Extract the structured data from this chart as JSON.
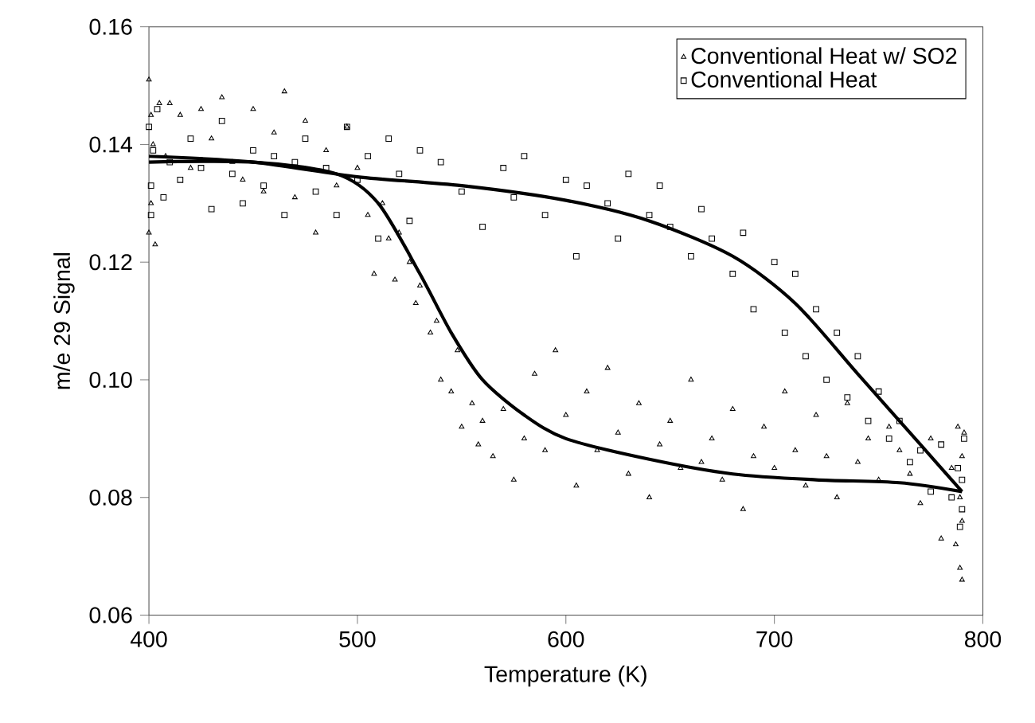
{
  "chart_data": {
    "type": "scatter",
    "xlabel": "Temperature (K)",
    "ylabel": "m/e 29 Signal",
    "xlim": [
      400,
      800
    ],
    "ylim": [
      0.06,
      0.16
    ],
    "xticks": [
      400,
      500,
      600,
      700,
      800
    ],
    "yticks": [
      0.06,
      0.08,
      {
        "value": 0.1,
        "label": "0.10"
      },
      0.12,
      0.14,
      0.16
    ],
    "grid": false,
    "legend": "top right",
    "series": [
      {
        "name": "Conventional Heat w/ SO2",
        "color": "#000000",
        "marker": "triangle",
        "x": [
          400,
          400,
          401,
          401,
          402,
          403,
          405,
          408,
          410,
          415,
          420,
          425,
          430,
          435,
          440,
          445,
          450,
          455,
          460,
          465,
          470,
          475,
          480,
          485,
          490,
          495,
          500,
          505,
          508,
          512,
          515,
          518,
          520,
          525,
          528,
          530,
          535,
          538,
          540,
          545,
          548,
          550,
          555,
          558,
          560,
          565,
          570,
          575,
          580,
          585,
          590,
          595,
          600,
          605,
          610,
          615,
          620,
          625,
          630,
          635,
          640,
          645,
          650,
          655,
          660,
          665,
          670,
          675,
          680,
          685,
          690,
          695,
          700,
          705,
          710,
          715,
          720,
          725,
          730,
          735,
          740,
          745,
          750,
          755,
          760,
          765,
          770,
          775,
          780,
          785,
          787,
          788,
          789,
          789,
          790,
          790,
          790,
          791
        ],
        "values": [
          0.151,
          0.125,
          0.145,
          0.13,
          0.14,
          0.123,
          0.147,
          0.138,
          0.147,
          0.145,
          0.136,
          0.146,
          0.141,
          0.148,
          0.137,
          0.134,
          0.146,
          0.132,
          0.142,
          0.149,
          0.131,
          0.144,
          0.125,
          0.139,
          0.133,
          0.143,
          0.136,
          0.128,
          0.118,
          0.13,
          0.124,
          0.117,
          0.125,
          0.12,
          0.113,
          0.116,
          0.108,
          0.11,
          0.1,
          0.098,
          0.105,
          0.092,
          0.096,
          0.089,
          0.093,
          0.087,
          0.095,
          0.083,
          0.09,
          0.101,
          0.088,
          0.105,
          0.094,
          0.082,
          0.098,
          0.088,
          0.102,
          0.091,
          0.084,
          0.096,
          0.08,
          0.089,
          0.093,
          0.085,
          0.1,
          0.086,
          0.09,
          0.083,
          0.095,
          0.078,
          0.087,
          0.092,
          0.085,
          0.098,
          0.088,
          0.082,
          0.094,
          0.087,
          0.08,
          0.096,
          0.086,
          0.09,
          0.083,
          0.092,
          0.088,
          0.084,
          0.079,
          0.09,
          0.073,
          0.085,
          0.072,
          0.092,
          0.068,
          0.08,
          0.087,
          0.066,
          0.076,
          0.091
        ]
      },
      {
        "name": "Conventional Heat",
        "color": "#000000",
        "marker": "square",
        "x": [
          400,
          401,
          401,
          402,
          404,
          407,
          410,
          415,
          420,
          425,
          430,
          435,
          440,
          445,
          450,
          455,
          460,
          465,
          470,
          475,
          480,
          485,
          490,
          495,
          500,
          505,
          510,
          515,
          520,
          525,
          530,
          540,
          550,
          560,
          570,
          575,
          580,
          590,
          600,
          605,
          610,
          620,
          625,
          630,
          640,
          645,
          650,
          660,
          665,
          670,
          680,
          685,
          690,
          700,
          705,
          710,
          715,
          720,
          725,
          730,
          735,
          740,
          745,
          750,
          755,
          760,
          765,
          770,
          775,
          780,
          785,
          788,
          789,
          790,
          790,
          791
        ],
        "values": [
          0.143,
          0.133,
          0.128,
          0.139,
          0.146,
          0.131,
          0.137,
          0.134,
          0.141,
          0.136,
          0.129,
          0.144,
          0.135,
          0.13,
          0.139,
          0.133,
          0.138,
          0.128,
          0.137,
          0.141,
          0.132,
          0.136,
          0.128,
          0.143,
          0.134,
          0.138,
          0.124,
          0.141,
          0.135,
          0.127,
          0.139,
          0.137,
          0.132,
          0.126,
          0.136,
          0.131,
          0.138,
          0.128,
          0.134,
          0.121,
          0.133,
          0.13,
          0.124,
          0.135,
          0.128,
          0.133,
          0.126,
          0.121,
          0.129,
          0.124,
          0.118,
          0.125,
          0.112,
          0.12,
          0.108,
          0.118,
          0.104,
          0.112,
          0.1,
          0.108,
          0.097,
          0.104,
          0.093,
          0.098,
          0.09,
          0.093,
          0.086,
          0.088,
          0.081,
          0.089,
          0.08,
          0.085,
          0.075,
          0.083,
          0.078,
          0.09
        ]
      },
      {
        "type": "line",
        "color": "#000000",
        "x": [
          400,
          450,
          490,
          510,
          530,
          545,
          560,
          580,
          600,
          640,
          680,
          720,
          760,
          790
        ],
        "values": [
          0.137,
          0.137,
          0.135,
          0.13,
          0.118,
          0.108,
          0.1,
          0.094,
          0.09,
          0.0865,
          0.084,
          0.083,
          0.0825,
          0.081
        ]
      },
      {
        "type": "line",
        "color": "#000000",
        "x": [
          400,
          450,
          500,
          550,
          600,
          640,
          680,
          710,
          740,
          770,
          790
        ],
        "values": [
          0.138,
          0.137,
          0.1345,
          0.133,
          0.1305,
          0.127,
          0.121,
          0.113,
          0.101,
          0.089,
          0.081
        ]
      }
    ]
  }
}
